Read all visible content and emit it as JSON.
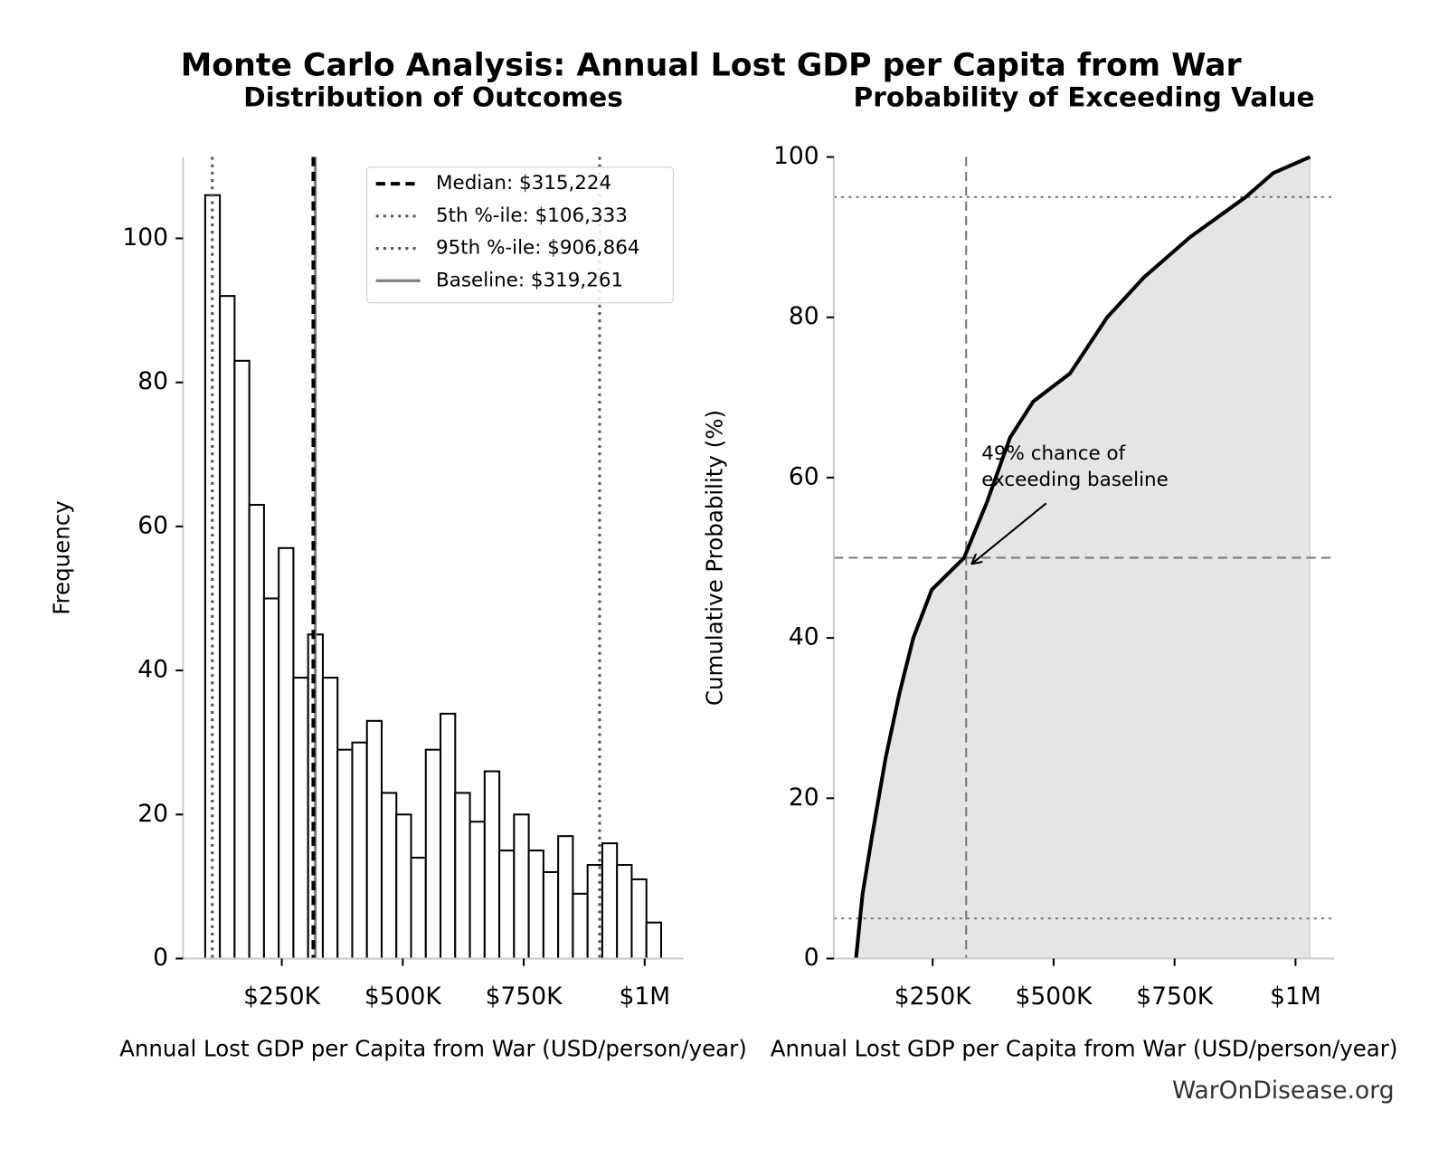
{
  "title": "Monte Carlo Analysis: Annual Lost GDP per Capita from War",
  "source": "WarOnDisease.org",
  "chart_data": [
    {
      "type": "histogram",
      "subtitle": "Distribution of Outcomes",
      "xlabel": "Annual Lost GDP per Capita from War (USD/person/year)",
      "ylabel": "Frequency",
      "bins": [
        91600,
        122000,
        152400,
        182800,
        213200,
        243600,
        274000,
        304400,
        334800,
        365200,
        395600,
        426000,
        456400,
        486800,
        517200,
        547600,
        578000,
        608400,
        638800,
        669200,
        699600,
        730000,
        760400,
        790800,
        821200,
        851600,
        882000,
        912400,
        942800,
        973200,
        1003600,
        1034000
      ],
      "values": [
        106,
        92,
        83,
        63,
        50,
        57,
        39,
        45,
        39,
        29,
        30,
        33,
        23,
        20,
        14,
        29,
        34,
        23,
        19,
        26,
        15,
        20,
        15,
        12,
        17,
        9,
        13,
        16,
        13,
        11,
        5
      ],
      "color": "#ffffff",
      "edgecolor": "#000000",
      "xlim": [
        45800,
        1080000
      ],
      "ylim": [
        0,
        111.3
      ],
      "xticks": [
        {
          "value": 250000,
          "label": "$250K"
        },
        {
          "value": 500000,
          "label": "$500K"
        },
        {
          "value": 750000,
          "label": "$750K"
        },
        {
          "value": 1000000,
          "label": "$1M"
        }
      ],
      "yticks": [
        0,
        20,
        40,
        60,
        80,
        100
      ],
      "lines": [
        {
          "name": "Median: $315,224",
          "value": 315224,
          "color": "#000000",
          "style": "dashed"
        },
        {
          "name": "5th %-ile: $106,333",
          "value": 106333,
          "color": "#555555",
          "style": "dotted"
        },
        {
          "name": "95th %-ile: $906,864",
          "value": 906864,
          "color": "#555555",
          "style": "dotted"
        },
        {
          "name": "Baseline: $319,261",
          "value": 319261,
          "color": "#808080",
          "style": "solid"
        }
      ],
      "legend": "upper right"
    },
    {
      "type": "line",
      "subtitle": "Probability of Exceeding Value",
      "xlabel": "Annual Lost GDP per Capita from War (USD/person/year)",
      "ylabel": "Cumulative Probability (%)",
      "x": [
        91600,
        105000,
        124000,
        152700,
        181000,
        210000,
        248000,
        315000,
        362600,
        410000,
        458000,
        534000,
        610700,
        687000,
        782000,
        897000,
        954000,
        1030000
      ],
      "series": [
        {
          "color": "#000000",
          "values": [
            0,
            8,
            15,
            25,
            33,
            40,
            46,
            50,
            57,
            65,
            69.5,
            73,
            80,
            85,
            90,
            95,
            98,
            100
          ]
        }
      ],
      "fill": "#e5e5e5",
      "xlim": [
        45800,
        1080000
      ],
      "ylim": [
        0,
        100
      ],
      "xticks": [
        {
          "value": 250000,
          "label": "$250K"
        },
        {
          "value": 500000,
          "label": "$500K"
        },
        {
          "value": 750000,
          "label": "$750K"
        },
        {
          "value": 1000000,
          "label": "$1M"
        }
      ],
      "yticks": [
        0,
        20,
        40,
        60,
        80,
        100
      ],
      "hlines": [
        {
          "value": 95,
          "style": "dotted",
          "color": "#777777"
        },
        {
          "value": 5,
          "style": "dotted",
          "color": "#777777"
        },
        {
          "value": 50,
          "style": "dashed",
          "color": "#777777"
        }
      ],
      "vlines": [
        {
          "value": 319261,
          "style": "dashed",
          "color": "#777777"
        }
      ],
      "annotation": {
        "text": [
          "49% chance of",
          "exceeding baseline"
        ],
        "xy": [
          319261,
          49
        ]
      }
    }
  ]
}
